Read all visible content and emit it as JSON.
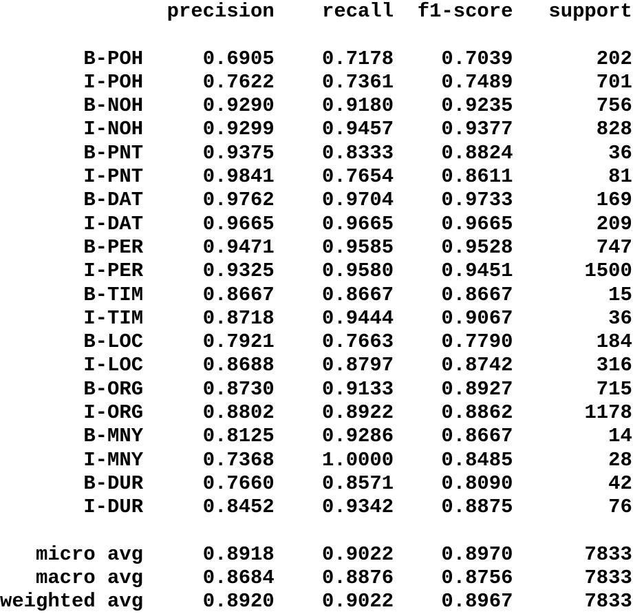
{
  "report": {
    "text_color": "#000000",
    "background_color": "#ffffff",
    "columns": [
      "precision",
      "recall",
      "f1-score",
      "support"
    ],
    "rows": [
      {
        "label": "B-POH",
        "precision": "0.6905",
        "recall": "0.7178",
        "f1_score": "0.7039",
        "support": "202"
      },
      {
        "label": "I-POH",
        "precision": "0.7622",
        "recall": "0.7361",
        "f1_score": "0.7489",
        "support": "701"
      },
      {
        "label": "B-NOH",
        "precision": "0.9290",
        "recall": "0.9180",
        "f1_score": "0.9235",
        "support": "756"
      },
      {
        "label": "I-NOH",
        "precision": "0.9299",
        "recall": "0.9457",
        "f1_score": "0.9377",
        "support": "828"
      },
      {
        "label": "B-PNT",
        "precision": "0.9375",
        "recall": "0.8333",
        "f1_score": "0.8824",
        "support": "36"
      },
      {
        "label": "I-PNT",
        "precision": "0.9841",
        "recall": "0.7654",
        "f1_score": "0.8611",
        "support": "81"
      },
      {
        "label": "B-DAT",
        "precision": "0.9762",
        "recall": "0.9704",
        "f1_score": "0.9733",
        "support": "169"
      },
      {
        "label": "I-DAT",
        "precision": "0.9665",
        "recall": "0.9665",
        "f1_score": "0.9665",
        "support": "209"
      },
      {
        "label": "B-PER",
        "precision": "0.9471",
        "recall": "0.9585",
        "f1_score": "0.9528",
        "support": "747"
      },
      {
        "label": "I-PER",
        "precision": "0.9325",
        "recall": "0.9580",
        "f1_score": "0.9451",
        "support": "1500"
      },
      {
        "label": "B-TIM",
        "precision": "0.8667",
        "recall": "0.8667",
        "f1_score": "0.8667",
        "support": "15"
      },
      {
        "label": "I-TIM",
        "precision": "0.8718",
        "recall": "0.9444",
        "f1_score": "0.9067",
        "support": "36"
      },
      {
        "label": "B-LOC",
        "precision": "0.7921",
        "recall": "0.7663",
        "f1_score": "0.7790",
        "support": "184"
      },
      {
        "label": "I-LOC",
        "precision": "0.8688",
        "recall": "0.8797",
        "f1_score": "0.8742",
        "support": "316"
      },
      {
        "label": "B-ORG",
        "precision": "0.8730",
        "recall": "0.9133",
        "f1_score": "0.8927",
        "support": "715"
      },
      {
        "label": "I-ORG",
        "precision": "0.8802",
        "recall": "0.8922",
        "f1_score": "0.8862",
        "support": "1178"
      },
      {
        "label": "B-MNY",
        "precision": "0.8125",
        "recall": "0.9286",
        "f1_score": "0.8667",
        "support": "14"
      },
      {
        "label": "I-MNY",
        "precision": "0.7368",
        "recall": "1.0000",
        "f1_score": "0.8485",
        "support": "28"
      },
      {
        "label": "B-DUR",
        "precision": "0.7660",
        "recall": "0.8571",
        "f1_score": "0.8090",
        "support": "42"
      },
      {
        "label": "I-DUR",
        "precision": "0.8452",
        "recall": "0.9342",
        "f1_score": "0.8875",
        "support": "76"
      }
    ],
    "averages": [
      {
        "label": "micro avg",
        "precision": "0.8918",
        "recall": "0.9022",
        "f1_score": "0.8970",
        "support": "7833"
      },
      {
        "label": "macro avg",
        "precision": "0.8684",
        "recall": "0.8876",
        "f1_score": "0.8756",
        "support": "7833"
      },
      {
        "label": "weighted avg",
        "precision": "0.8920",
        "recall": "0.9022",
        "f1_score": "0.8967",
        "support": "7833"
      }
    ]
  }
}
